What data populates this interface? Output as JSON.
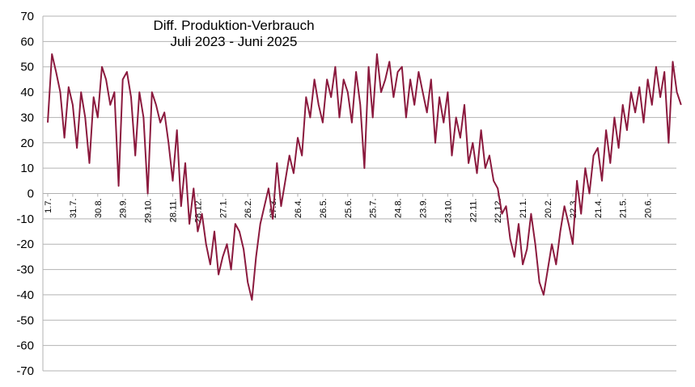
{
  "chart_data": {
    "type": "line",
    "title": "Diff. Produktion-Verbrauch",
    "subtitle": "Juli 2023 - Juni 2025",
    "xlabel": "",
    "ylabel": "",
    "ylim": [
      -70,
      70
    ],
    "yticks": [
      70,
      60,
      50,
      40,
      30,
      20,
      10,
      0,
      -10,
      -20,
      -30,
      -40,
      -50,
      -60,
      -70
    ],
    "grid": true,
    "legend": "none",
    "color": "#8b1a3e",
    "x_range": [
      "1.7.2023",
      "25.6.2025"
    ],
    "xtick_labels": [
      "1.7.",
      "31.7.",
      "30.8.",
      "29.9.",
      "29.10.",
      "28.11.",
      "28.12.",
      "27.1.",
      "26.2.",
      "27.3.",
      "26.4.",
      "26.5.",
      "25.6.",
      "25.7.",
      "24.8.",
      "23.9.",
      "23.10.",
      "22.11.",
      "22.12.",
      "21.1.",
      "20.2.",
      "22.3.",
      "21.4.",
      "21.5.",
      "20.6."
    ],
    "series": [
      {
        "name": "",
        "step_days": 5,
        "values": [
          28,
          55,
          48,
          40,
          22,
          42,
          35,
          18,
          40,
          30,
          12,
          38,
          30,
          50,
          45,
          35,
          40,
          3,
          45,
          48,
          38,
          15,
          40,
          30,
          0,
          40,
          35,
          28,
          32,
          20,
          5,
          25,
          -5,
          12,
          -12,
          2,
          -15,
          -8,
          -20,
          -28,
          -15,
          -32,
          -25,
          -20,
          -30,
          -12,
          -15,
          -22,
          -35,
          -42,
          -25,
          -12,
          -5,
          2,
          -10,
          12,
          -5,
          5,
          15,
          8,
          22,
          15,
          38,
          30,
          45,
          35,
          28,
          45,
          38,
          50,
          30,
          45,
          40,
          28,
          48,
          35,
          10,
          50,
          30,
          55,
          40,
          45,
          52,
          38,
          48,
          50,
          30,
          45,
          35,
          48,
          40,
          32,
          45,
          20,
          38,
          28,
          40,
          15,
          30,
          22,
          35,
          12,
          20,
          8,
          25,
          10,
          15,
          5,
          2,
          -8,
          -5,
          -18,
          -25,
          -12,
          -28,
          -22,
          -8,
          -20,
          -35,
          -40,
          -30,
          -20,
          -28,
          -15,
          -5,
          -12,
          -20,
          5,
          -8,
          10,
          0,
          15,
          18,
          5,
          25,
          12,
          30,
          18,
          35,
          25,
          40,
          32,
          42,
          28,
          45,
          35,
          50,
          38,
          48,
          20,
          52,
          40,
          35
        ]
      }
    ]
  }
}
